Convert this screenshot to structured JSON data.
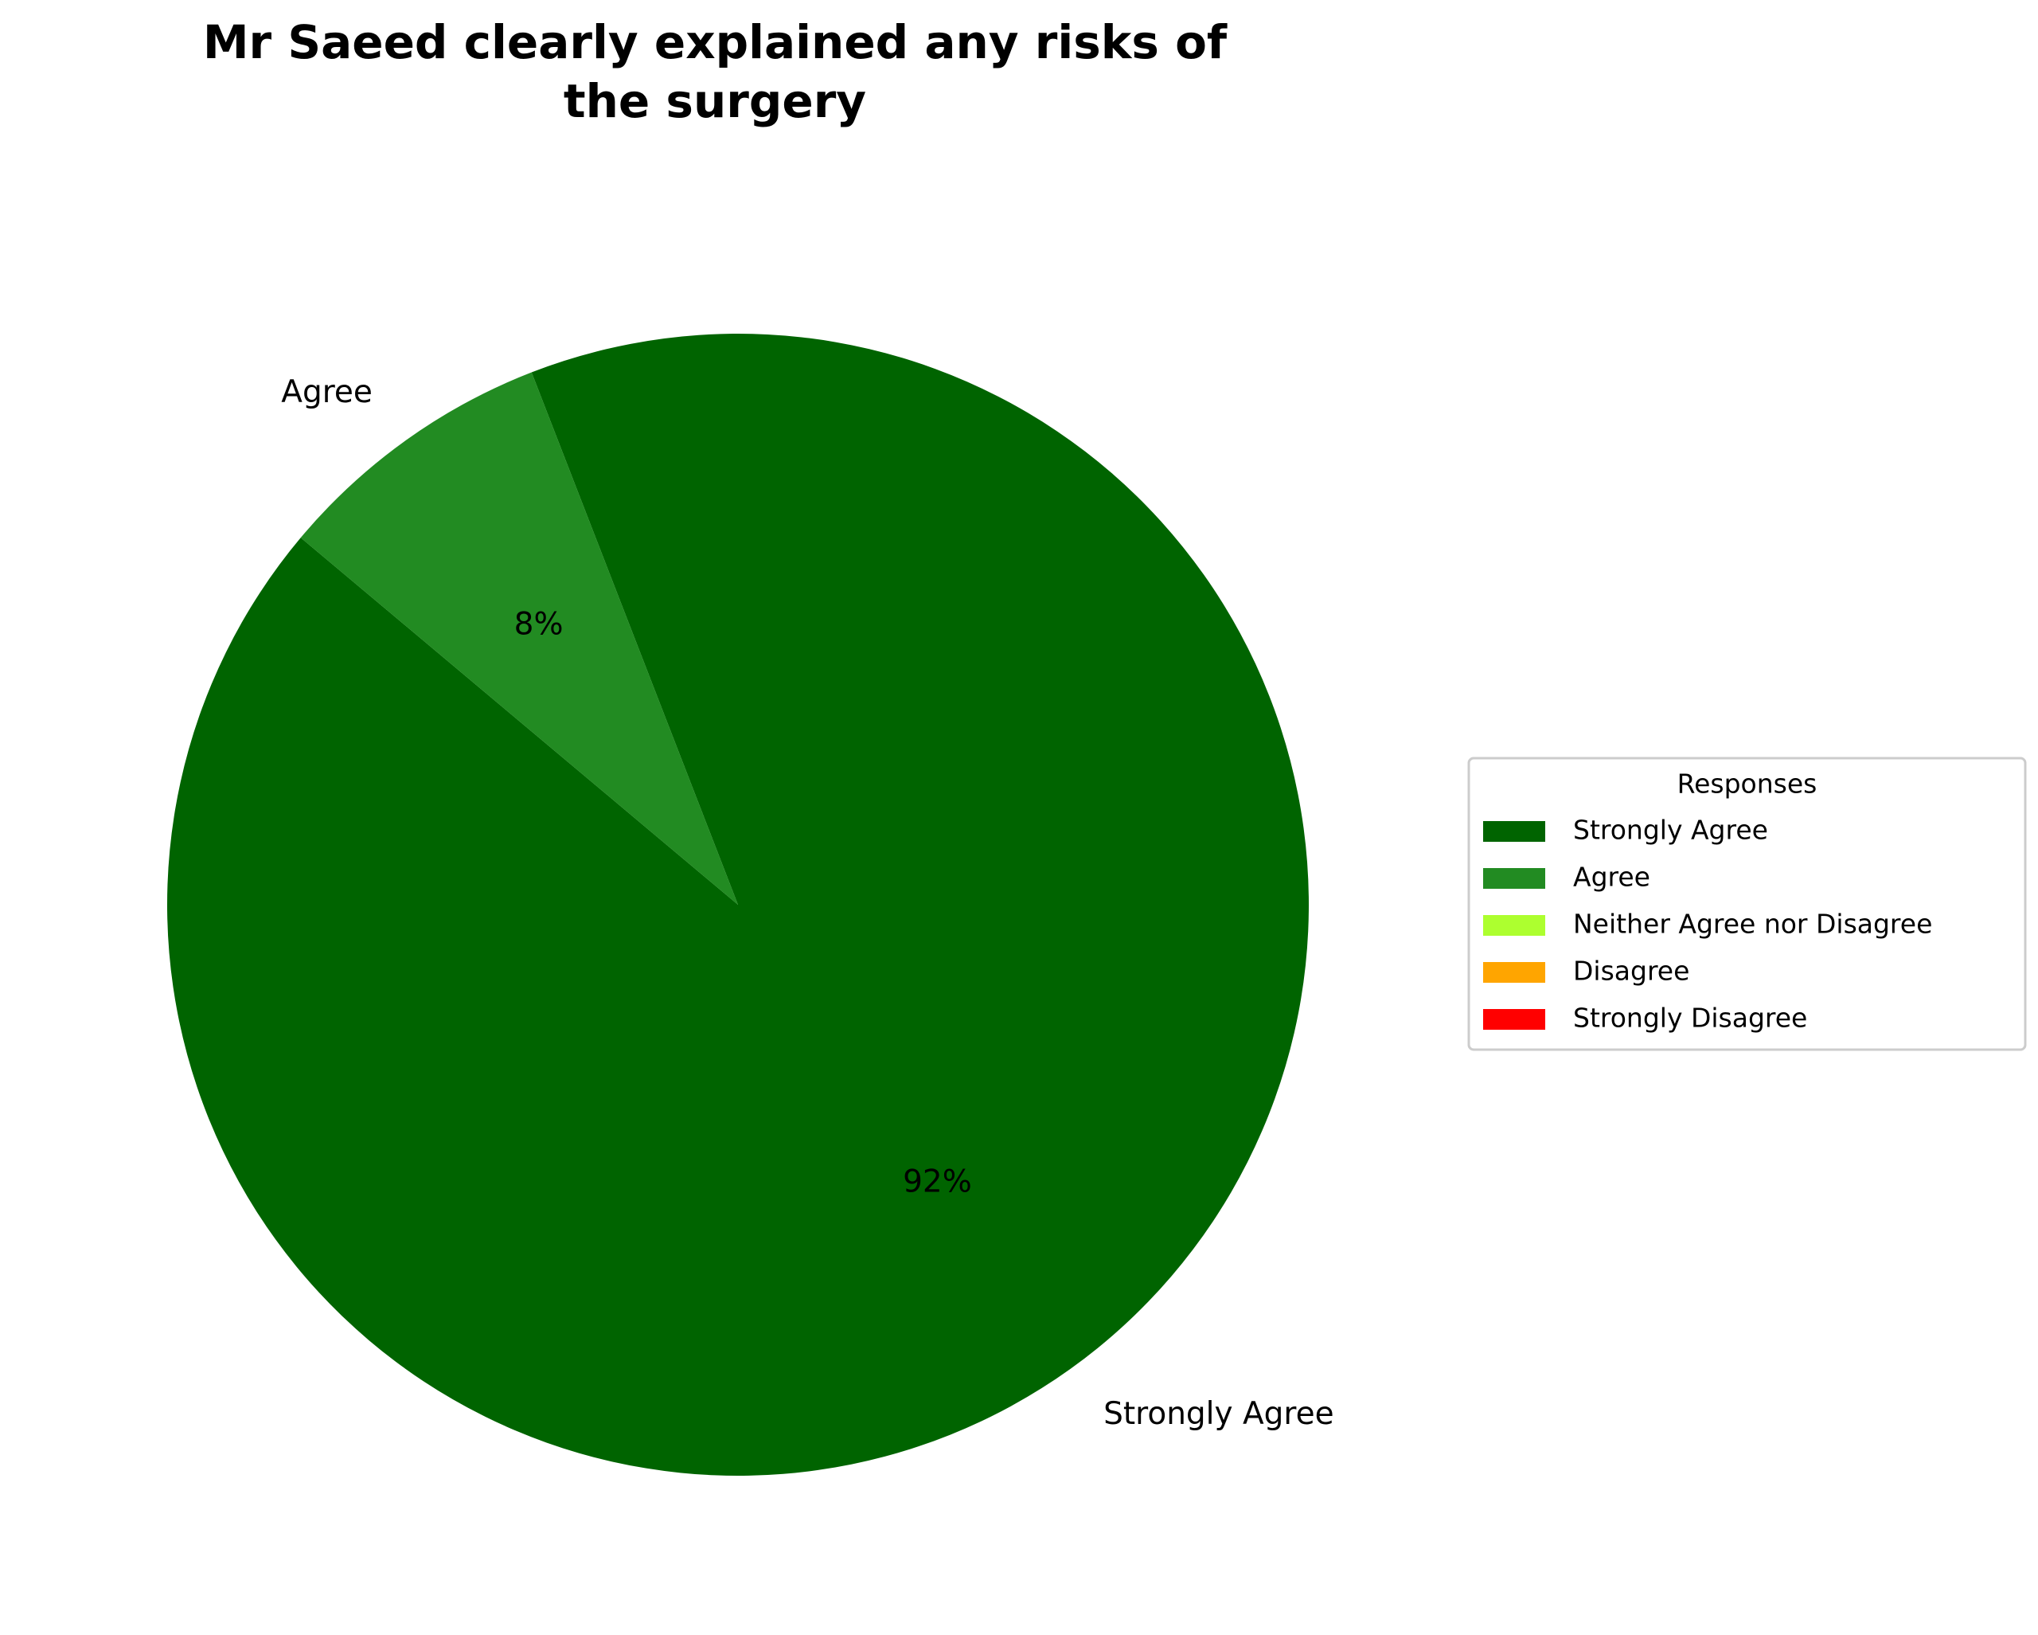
{
  "chart_data": {
    "type": "pie",
    "title": "Mr Saeed clearly explained any risks of\nthe surgery",
    "categories": [
      "Strongly Agree",
      "Agree",
      "Neither Agree nor Disagree",
      "Disagree",
      "Strongly Disagree"
    ],
    "values": [
      92,
      8,
      0,
      0,
      0
    ],
    "value_labels": [
      "92%",
      "8%",
      null,
      null,
      null
    ],
    "colors": [
      "#006400",
      "#228b22",
      "#adff2f",
      "#ffa500",
      "#ff0000"
    ],
    "start_angle": 140,
    "legend": {
      "title": "Responses",
      "position": "right"
    }
  }
}
